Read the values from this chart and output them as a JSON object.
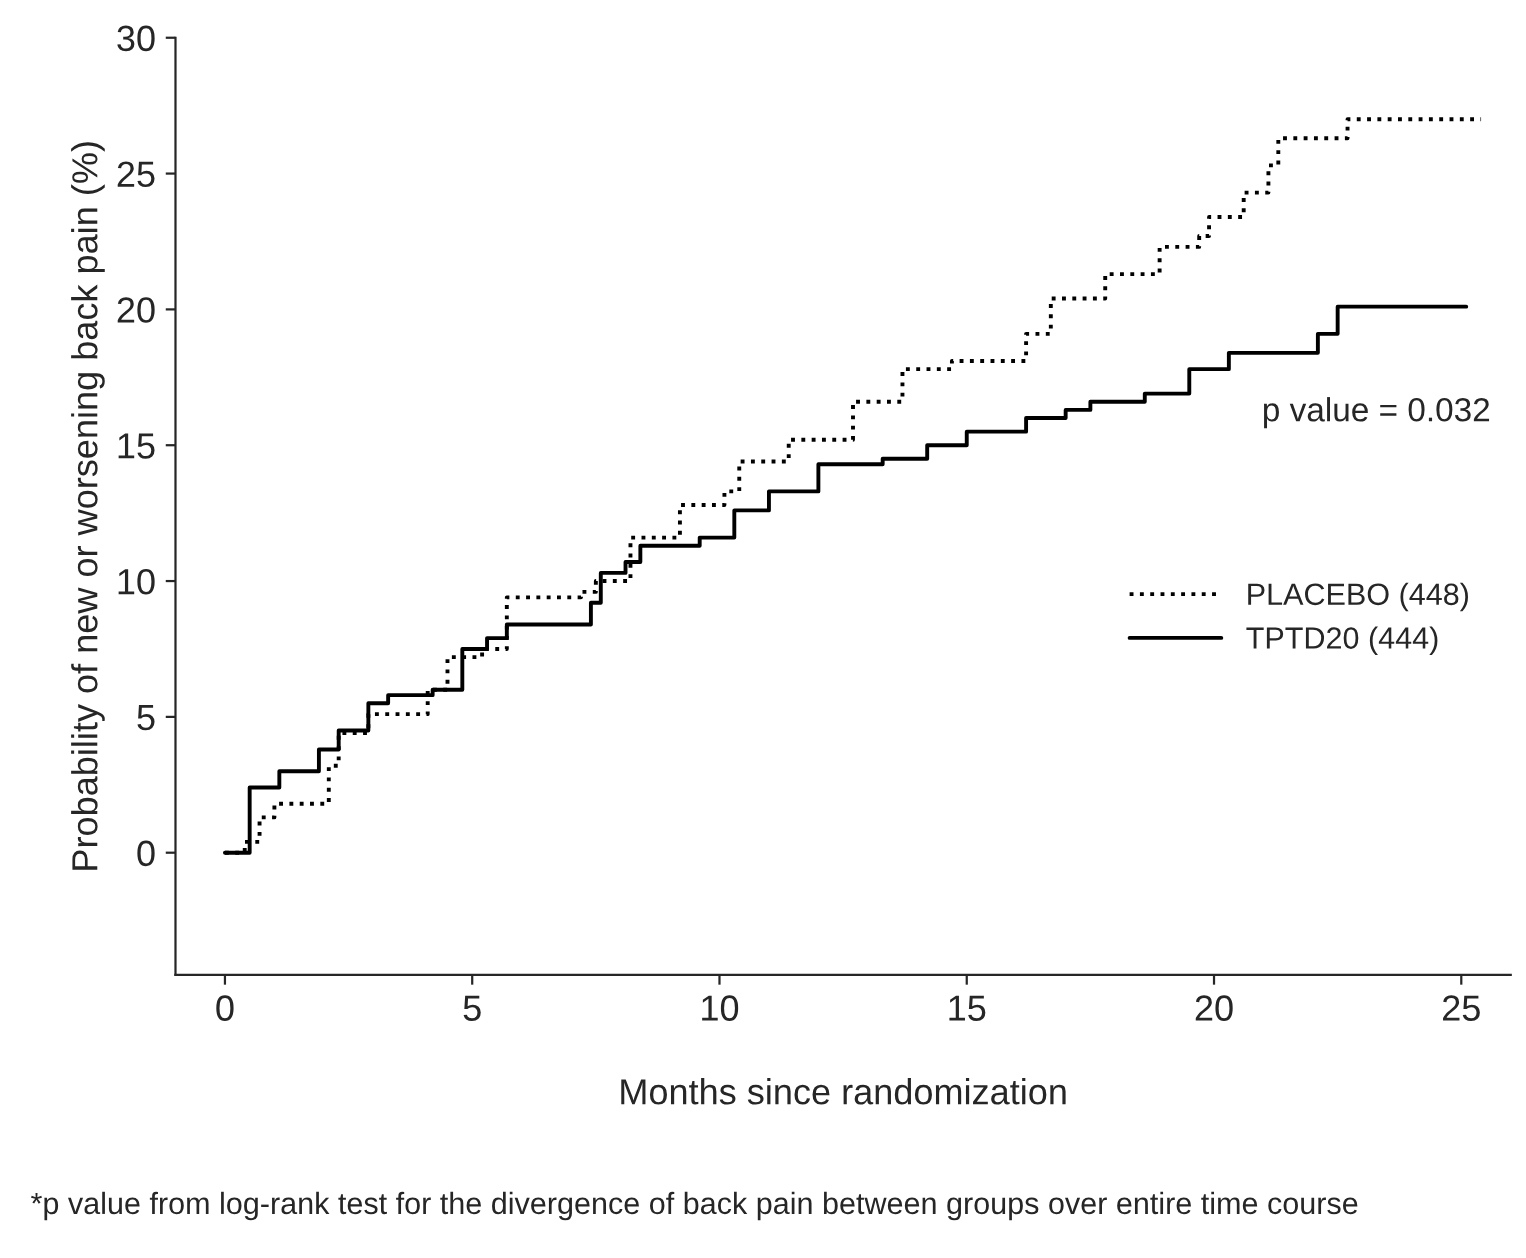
{
  "chart_data": {
    "type": "step",
    "xlabel": "Months since randomization",
    "ylabel": "Probability of new or worsening back pain (%)",
    "xlim": [
      -1,
      26
    ],
    "xticks": [
      0,
      5,
      10,
      15,
      20,
      25
    ],
    "ylim": [
      -4.5,
      30
    ],
    "yticks": [
      0,
      5,
      10,
      15,
      20,
      25,
      30
    ],
    "grid": false,
    "legend": "right",
    "marker": "none",
    "series": [
      {
        "name": "PLACEBO (448)",
        "color": "#000000",
        "line_style": "dotted",
        "x": [
          0,
          0.4,
          0.7,
          1.0,
          1.8,
          2.1,
          2.3,
          2.9,
          3.7,
          4.1,
          4.5,
          5.2,
          5.7,
          7.2,
          7.5,
          8.2,
          9.2,
          10.1,
          10.4,
          11.4,
          12.0,
          12.7,
          13.7,
          14.7,
          16.2,
          16.7,
          17.1,
          17.8,
          18.9,
          19.7,
          19.9,
          20.6,
          21.1,
          21.3,
          22.7,
          25.4
        ],
        "values": [
          0,
          0.4,
          1.3,
          1.8,
          1.8,
          3.2,
          4.4,
          5.1,
          5.1,
          6.0,
          7.2,
          7.5,
          9.4,
          9.6,
          10.0,
          11.6,
          12.8,
          13.3,
          14.4,
          15.2,
          15.2,
          16.6,
          17.8,
          18.1,
          19.1,
          20.4,
          20.4,
          21.3,
          22.3,
          22.7,
          23.4,
          24.3,
          25.3,
          26.3,
          27.0,
          27.0
        ]
      },
      {
        "name": "TPTD20 (444)",
        "color": "#000000",
        "line_style": "solid",
        "x": [
          0,
          0.5,
          1.1,
          1.9,
          2.3,
          2.9,
          3.3,
          4.2,
          4.8,
          5.3,
          5.7,
          6.5,
          7.4,
          7.6,
          8.1,
          8.4,
          9.6,
          10.3,
          11.0,
          12.0,
          13.3,
          14.2,
          15.0,
          16.2,
          17.0,
          17.5,
          18.6,
          19.5,
          20.3,
          22.1,
          22.5,
          25.1
        ],
        "values": [
          0,
          2.4,
          3.0,
          3.8,
          4.5,
          5.5,
          5.8,
          6.0,
          7.5,
          7.9,
          8.4,
          8.4,
          9.2,
          10.3,
          10.7,
          11.3,
          11.6,
          12.6,
          13.3,
          14.3,
          14.5,
          15.0,
          15.5,
          16.0,
          16.3,
          16.6,
          16.9,
          17.8,
          18.4,
          19.1,
          20.1,
          20.1
        ]
      }
    ],
    "annotations": [
      "p value = 0.032",
      "*p value from log-rank test for the divergence of back pain between groups over entire time course"
    ]
  }
}
